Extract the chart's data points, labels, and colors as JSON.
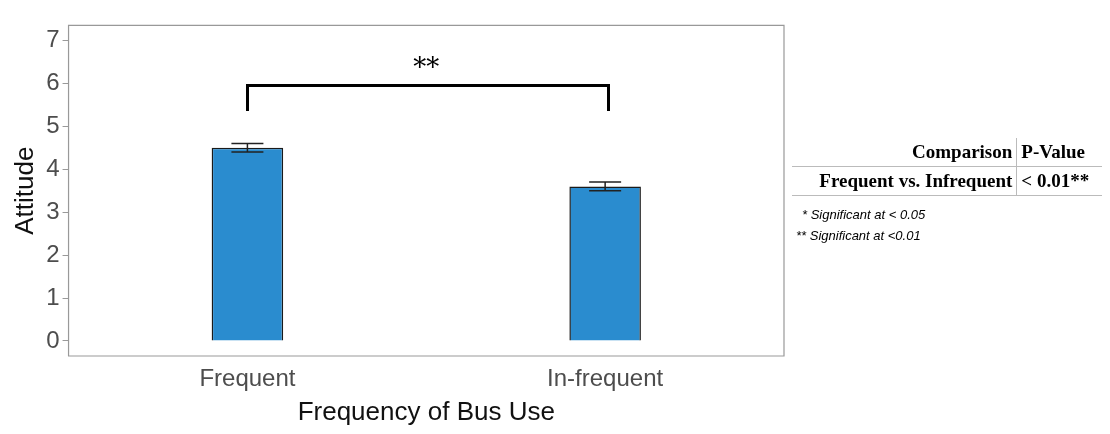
{
  "chart_data": [
    {
      "type": "bar",
      "xlabel": "Frequency of Bus Use",
      "ylabel": "Attitude",
      "categories": [
        "Frequent",
        "In-frequent"
      ],
      "values": [
        4.5,
        3.6
      ],
      "errors": [
        0.1,
        0.1
      ],
      "color": "#2a8ccf",
      "ylim": [
        -0.35,
        7.35
      ],
      "yticks": [
        0,
        1,
        2,
        3,
        4,
        5,
        6,
        7
      ],
      "grid": false,
      "legend": false,
      "annotations": [
        "**"
      ]
    },
    {
      "type": "other",
      "annotations": [
        "Comparison",
        "P-Value",
        "Frequent vs. Infrequent",
        "< 0.01**",
        "* Significant at < 0.05",
        "** Significant at <0.01"
      ]
    }
  ]
}
